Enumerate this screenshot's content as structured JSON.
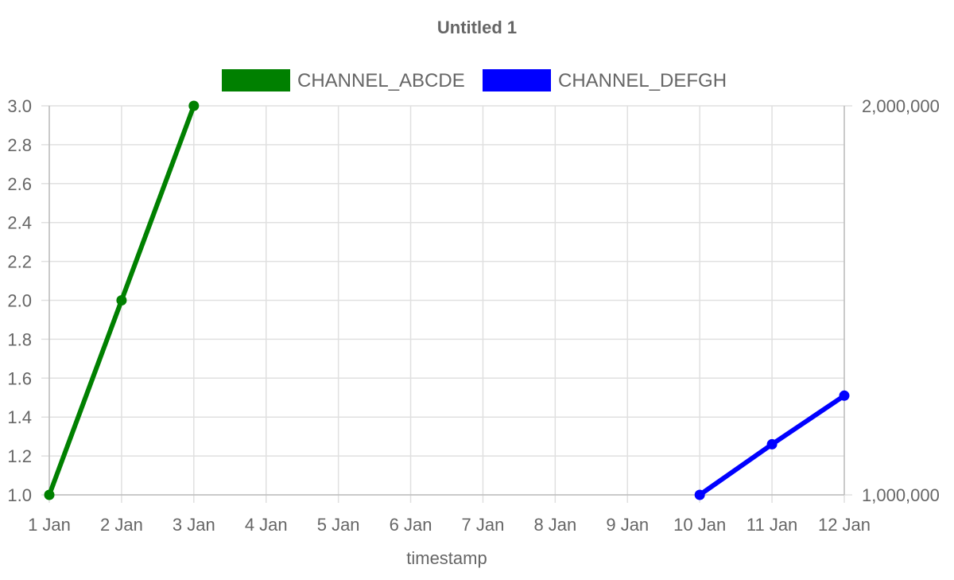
{
  "chart_data": {
    "type": "line",
    "title": "Untitled 1",
    "xlabel": "timestamp",
    "x_ticks": [
      "1 Jan",
      "2 Jan",
      "3 Jan",
      "4 Jan",
      "5 Jan",
      "6 Jan",
      "7 Jan",
      "8 Jan",
      "9 Jan",
      "10 Jan",
      "11 Jan",
      "12 Jan"
    ],
    "left_axis": {
      "range": [
        1.0,
        3.0
      ],
      "ticks": [
        "1.0",
        "1.2",
        "1.4",
        "1.6",
        "1.8",
        "2.0",
        "2.2",
        "2.4",
        "2.6",
        "2.8",
        "3.0"
      ]
    },
    "right_axis": {
      "range": [
        1000000,
        2000000
      ],
      "ticks": [
        "1,000,000",
        "2,000,000"
      ]
    },
    "grid": true,
    "legend_position": "top",
    "series": [
      {
        "name": "CHANNEL_ABCDE",
        "color": "#008000",
        "axis": "left",
        "x": [
          "1 Jan",
          "2 Jan",
          "3 Jan"
        ],
        "y": [
          1.0,
          2.0,
          3.0
        ]
      },
      {
        "name": "CHANNEL_DEFGH",
        "color": "#0000ff",
        "axis": "right",
        "x": [
          "10 Jan",
          "11 Jan",
          "12 Jan"
        ],
        "y": [
          1000000,
          1130000,
          1255000
        ]
      }
    ]
  }
}
